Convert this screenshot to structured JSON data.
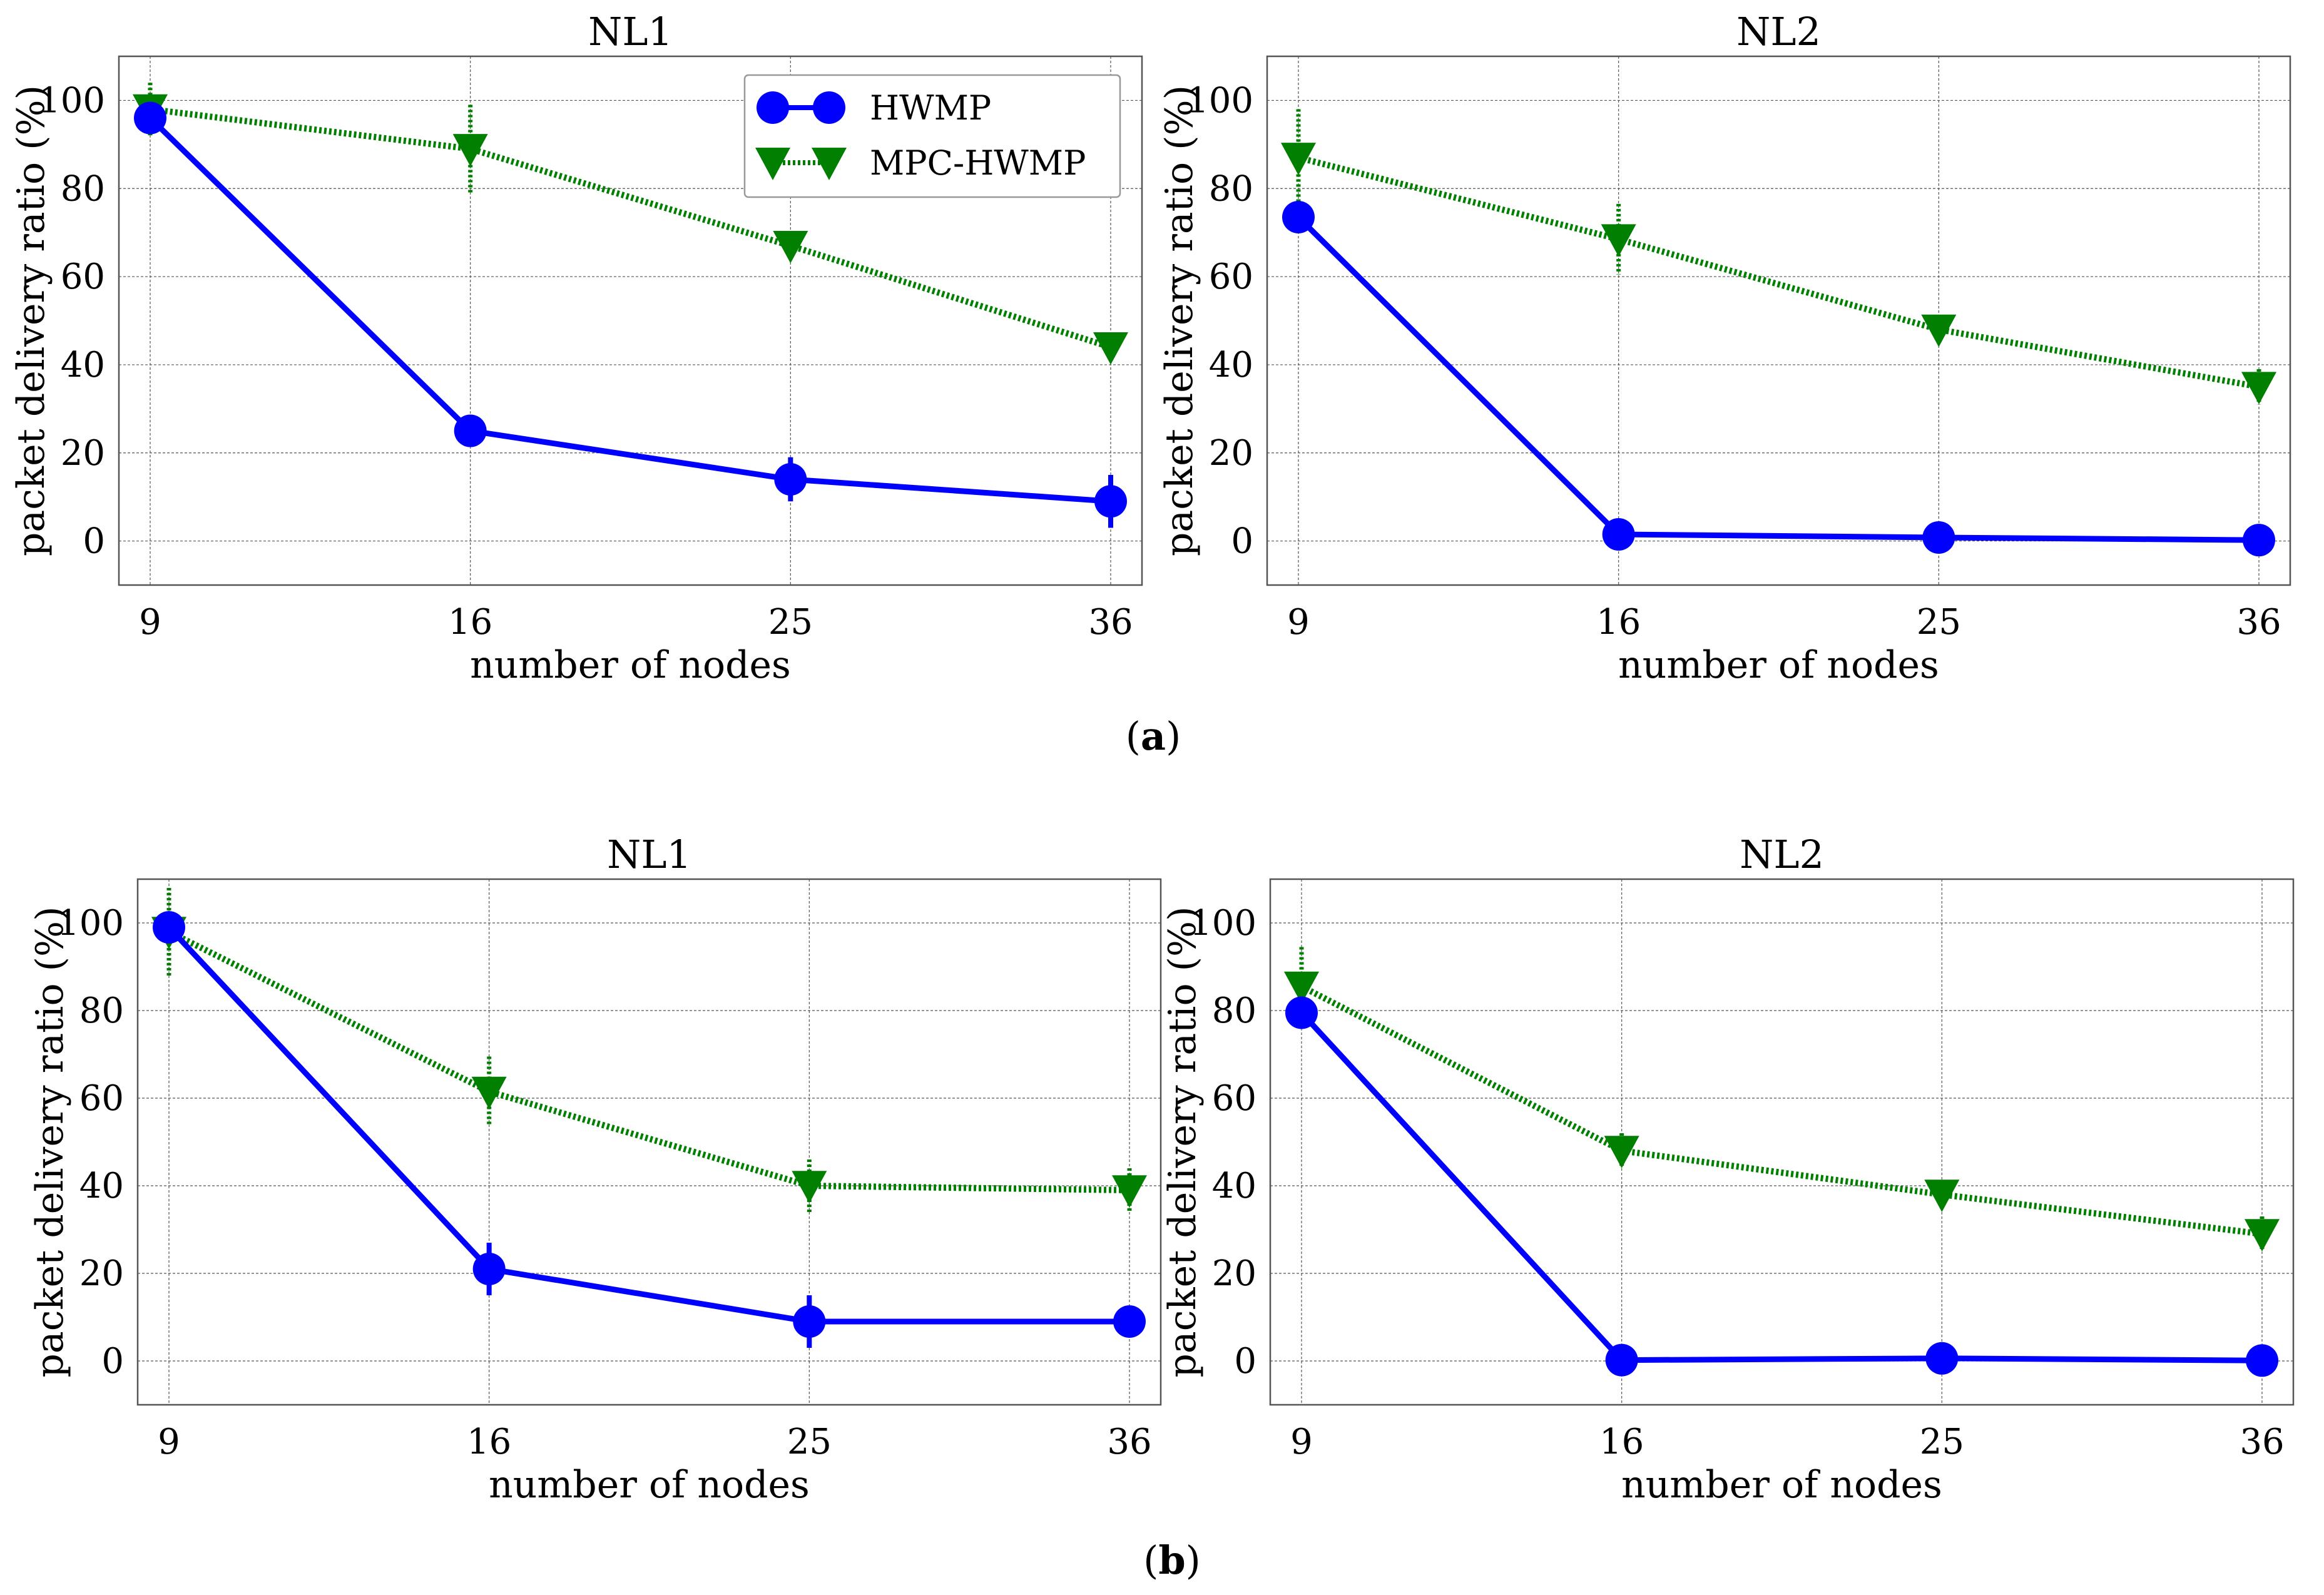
{
  "chart_data": [
    {
      "type": "line",
      "group": "a",
      "title": "NL1",
      "xlabel": "number of nodes",
      "ylabel": "packet delivery ratio (%)",
      "categories": [
        "9",
        "16",
        "25",
        "36"
      ],
      "ylim": [
        -10,
        110
      ],
      "yticks": [
        "0",
        "20",
        "40",
        "60",
        "80",
        "100"
      ],
      "grid": true,
      "legend": "top-right",
      "series": [
        {
          "name": "HWMP",
          "values": [
            96,
            25,
            14,
            9
          ],
          "err": [
            2,
            2,
            5,
            6
          ]
        },
        {
          "name": "MPC-HWMP",
          "values": [
            98,
            89,
            67,
            44
          ],
          "err": [
            6,
            10,
            3,
            2
          ]
        }
      ]
    },
    {
      "type": "line",
      "group": "a",
      "title": "NL2",
      "xlabel": "number of nodes",
      "ylabel": "packet delivery ratio (%)",
      "categories": [
        "9",
        "16",
        "25",
        "36"
      ],
      "ylim": [
        -10,
        110
      ],
      "yticks": [
        "0",
        "20",
        "40",
        "60",
        "80",
        "100"
      ],
      "grid": true,
      "series": [
        {
          "name": "HWMP",
          "values": [
            73.5,
            1.5,
            0.8,
            0.2
          ],
          "err": [
            2,
            1,
            1,
            1
          ]
        },
        {
          "name": "MPC-HWMP",
          "values": [
            87,
            68.5,
            48,
            35
          ],
          "err": [
            11,
            8,
            2,
            4
          ]
        }
      ]
    },
    {
      "type": "line",
      "group": "b",
      "title": "NL1",
      "xlabel": "number of nodes",
      "ylabel": "packet delivery ratio (%)",
      "categories": [
        "9",
        "16",
        "25",
        "36"
      ],
      "ylim": [
        -10,
        110
      ],
      "yticks": [
        "0",
        "20",
        "40",
        "60",
        "80",
        "100"
      ],
      "grid": true,
      "series": [
        {
          "name": "HWMP",
          "values": [
            99,
            21,
            9,
            9
          ],
          "err": [
            2,
            6,
            6,
            1
          ]
        },
        {
          "name": "MPC-HWMP",
          "values": [
            98,
            61.5,
            40,
            39
          ],
          "err": [
            10,
            8,
            6,
            5
          ]
        }
      ]
    },
    {
      "type": "line",
      "group": "b",
      "title": "NL2",
      "xlabel": "number of nodes",
      "ylabel": "packet delivery ratio (%)",
      "categories": [
        "9",
        "16",
        "25",
        "36"
      ],
      "ylim": [
        -10,
        110
      ],
      "yticks": [
        "0",
        "20",
        "40",
        "60",
        "80",
        "100"
      ],
      "grid": true,
      "series": [
        {
          "name": "HWMP",
          "values": [
            79.5,
            0.2,
            0.6,
            0.1
          ],
          "err": [
            1,
            1,
            1,
            1
          ]
        },
        {
          "name": "MPC-HWMP",
          "values": [
            85.5,
            48,
            38,
            29
          ],
          "err": [
            9,
            4,
            2,
            4
          ]
        }
      ]
    }
  ],
  "legend": {
    "hwmp_label": "HWMP",
    "mpc_label": "MPC-HWMP"
  },
  "captions": {
    "a": "a",
    "b": "b"
  },
  "colors": {
    "hwmp": "#0000ff",
    "mpc": "#007f00",
    "grid": "#555555"
  }
}
